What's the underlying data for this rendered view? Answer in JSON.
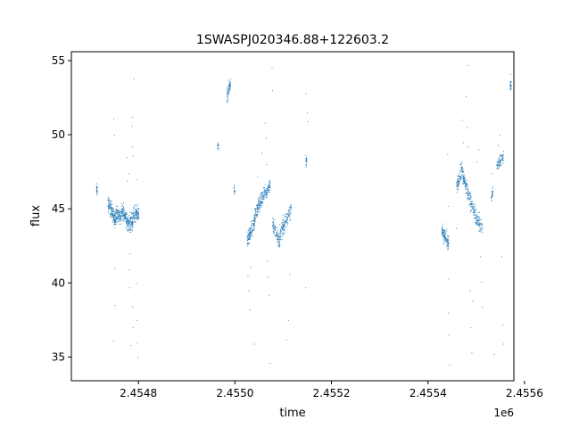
{
  "chart_data": {
    "type": "scatter",
    "title": "1SWASPJ020346.88+122603.2",
    "xlabel": "time",
    "ylabel": "flux",
    "x_offset_label": "1e6",
    "x_scale": 1000000,
    "xlim": [
      2454661,
      2455578
    ],
    "ylim": [
      33.4,
      55.6
    ],
    "xticks": [
      2454800,
      2455000,
      2455200,
      2455400,
      2455600
    ],
    "xtick_labels": [
      "2.4548",
      "2.4550",
      "2.4552",
      "2.4554",
      "2.4556"
    ],
    "yticks": [
      35,
      40,
      45,
      50,
      55
    ],
    "ytick_labels": [
      "35",
      "40",
      "45",
      "50",
      "55"
    ],
    "grid": false,
    "marker_color": "#1f77b4",
    "segments": [
      {
        "t0": 2454712,
        "t1": 2454714,
        "f0": 46.3,
        "f1": 46.3,
        "spread": 0.6,
        "n": 25
      },
      {
        "t0": 2454736,
        "t1": 2454752,
        "f0": 45.4,
        "f1": 44.3,
        "spread": 0.9,
        "n": 140
      },
      {
        "t0": 2454752,
        "t1": 2454764,
        "f0": 44.6,
        "f1": 44.6,
        "spread": 0.9,
        "n": 90
      },
      {
        "t0": 2454764,
        "t1": 2454776,
        "f0": 44.9,
        "f1": 44.3,
        "spread": 0.9,
        "n": 100
      },
      {
        "t0": 2454776,
        "t1": 2454788,
        "f0": 44.0,
        "f1": 44.2,
        "spread": 1.0,
        "n": 100
      },
      {
        "t0": 2454788,
        "t1": 2454800,
        "f0": 44.5,
        "f1": 44.7,
        "spread": 0.9,
        "n": 90
      },
      {
        "t0": 2454963,
        "t1": 2454965,
        "f0": 49.2,
        "f1": 49.2,
        "spread": 0.4,
        "n": 15
      },
      {
        "t0": 2454982,
        "t1": 2454990,
        "f0": 52.6,
        "f1": 53.6,
        "spread": 0.9,
        "n": 60
      },
      {
        "t0": 2454997,
        "t1": 2454999,
        "f0": 46.3,
        "f1": 46.3,
        "spread": 0.5,
        "n": 15
      },
      {
        "t0": 2455024,
        "t1": 2455040,
        "f0": 42.8,
        "f1": 44.2,
        "spread": 0.8,
        "n": 120
      },
      {
        "t0": 2455040,
        "t1": 2455062,
        "f0": 44.6,
        "f1": 46.3,
        "spread": 0.8,
        "n": 140
      },
      {
        "t0": 2455062,
        "t1": 2455072,
        "f0": 46.0,
        "f1": 46.6,
        "spread": 0.7,
        "n": 60
      },
      {
        "t0": 2455077,
        "t1": 2455092,
        "f0": 44.0,
        "f1": 42.8,
        "spread": 0.9,
        "n": 90
      },
      {
        "t0": 2455092,
        "t1": 2455116,
        "f0": 43.3,
        "f1": 45.0,
        "spread": 0.9,
        "n": 130
      },
      {
        "t0": 2455146,
        "t1": 2455148,
        "f0": 48.3,
        "f1": 48.3,
        "spread": 0.6,
        "n": 20
      },
      {
        "t0": 2455428,
        "t1": 2455442,
        "f0": 43.5,
        "f1": 42.7,
        "spread": 0.8,
        "n": 110
      },
      {
        "t0": 2455458,
        "t1": 2455470,
        "f0": 46.5,
        "f1": 47.9,
        "spread": 0.8,
        "n": 80
      },
      {
        "t0": 2455470,
        "t1": 2455484,
        "f0": 47.4,
        "f1": 45.9,
        "spread": 0.9,
        "n": 90
      },
      {
        "t0": 2455484,
        "t1": 2455500,
        "f0": 45.8,
        "f1": 44.3,
        "spread": 0.9,
        "n": 90
      },
      {
        "t0": 2455500,
        "t1": 2455512,
        "f0": 44.3,
        "f1": 43.7,
        "spread": 0.9,
        "n": 60
      },
      {
        "t0": 2455530,
        "t1": 2455534,
        "f0": 45.6,
        "f1": 46.3,
        "spread": 0.5,
        "n": 25
      },
      {
        "t0": 2455542,
        "t1": 2455556,
        "f0": 48.0,
        "f1": 48.6,
        "spread": 0.6,
        "n": 70
      },
      {
        "t0": 2455569,
        "t1": 2455572,
        "f0": 53.3,
        "f1": 53.3,
        "spread": 0.6,
        "n": 25
      }
    ],
    "outlier_points": [
      [
        2454748,
        51.1
      ],
      [
        2454749,
        50.0
      ],
      [
        2454750,
        41.0
      ],
      [
        2454751,
        38.5
      ],
      [
        2454747,
        36.1
      ],
      [
        2454775,
        48.5
      ],
      [
        2454776,
        46.9
      ],
      [
        2454779,
        47.4
      ],
      [
        2454787,
        49.2
      ],
      [
        2454788,
        48.6
      ],
      [
        2454786,
        50.6
      ],
      [
        2454787,
        51.2
      ],
      [
        2454780,
        40.9
      ],
      [
        2454781,
        39.7
      ],
      [
        2454782,
        42.0
      ],
      [
        2454787,
        38.4
      ],
      [
        2454788,
        37.0
      ],
      [
        2454783,
        35.8
      ],
      [
        2454795,
        47.0
      ],
      [
        2454795,
        40.0
      ],
      [
        2454796,
        37.5
      ],
      [
        2454797,
        36.0
      ],
      [
        2454798,
        35.0
      ],
      [
        2454790,
        53.8
      ],
      [
        2455026,
        40.5
      ],
      [
        2455028,
        39.5
      ],
      [
        2455030,
        38.2
      ],
      [
        2455032,
        41.1
      ],
      [
        2455040,
        35.9
      ],
      [
        2455046,
        47.2
      ],
      [
        2455055,
        48.8
      ],
      [
        2455062,
        50.8
      ],
      [
        2455064,
        49.8
      ],
      [
        2455065,
        48.0
      ],
      [
        2455066,
        41.5
      ],
      [
        2455068,
        40.4
      ],
      [
        2455070,
        39.2
      ],
      [
        2455072,
        34.6
      ],
      [
        2455076,
        54.5
      ],
      [
        2455077,
        53.0
      ],
      [
        2455106,
        36.2
      ],
      [
        2455110,
        37.5
      ],
      [
        2455113,
        40.6
      ],
      [
        2455146,
        52.8
      ],
      [
        2455149,
        51.5
      ],
      [
        2455150,
        50.9
      ],
      [
        2455146,
        39.7
      ],
      [
        2455440,
        48.7
      ],
      [
        2455441,
        45.2
      ],
      [
        2455442,
        40.3
      ],
      [
        2455442,
        38.0
      ],
      [
        2455443,
        36.5
      ],
      [
        2455444,
        34.5
      ],
      [
        2455458,
        43.7
      ],
      [
        2455470,
        51.0
      ],
      [
        2455472,
        49.5
      ],
      [
        2455480,
        50.5
      ],
      [
        2455482,
        49.2
      ],
      [
        2455481,
        54.7
      ],
      [
        2455478,
        52.6
      ],
      [
        2455486,
        39.5
      ],
      [
        2455488,
        37.0
      ],
      [
        2455490,
        35.3
      ],
      [
        2455492,
        38.8
      ],
      [
        2455500,
        48.2
      ],
      [
        2455505,
        49.0
      ],
      [
        2455508,
        41.8
      ],
      [
        2455510,
        40.1
      ],
      [
        2455512,
        38.4
      ],
      [
        2455532,
        47.4
      ],
      [
        2455536,
        35.2
      ],
      [
        2455545,
        49.3
      ],
      [
        2455548,
        50.0
      ],
      [
        2455552,
        41.8
      ],
      [
        2455554,
        37.2
      ],
      [
        2455556,
        35.9
      ],
      [
        2455570,
        54.1
      ]
    ]
  }
}
